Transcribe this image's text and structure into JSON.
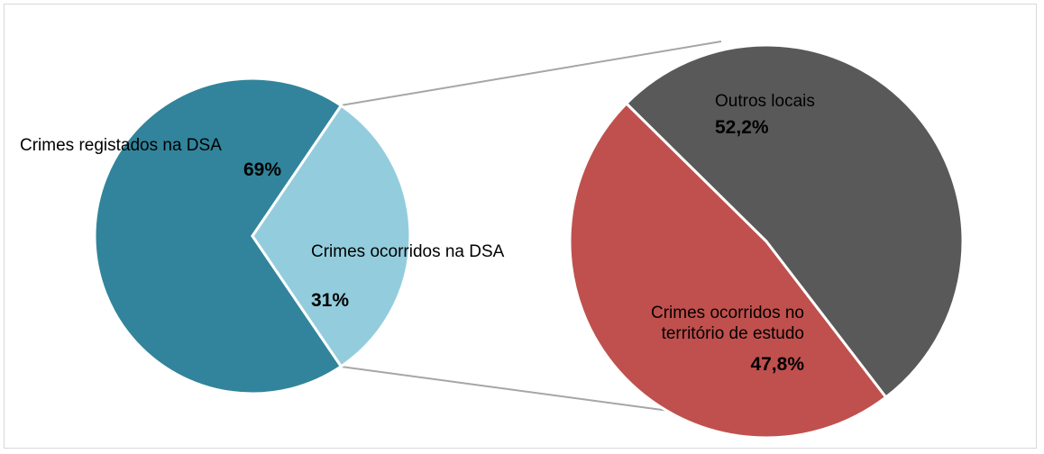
{
  "chart_data": [
    {
      "type": "pie",
      "categories": [
        "Crimes registados na DSA",
        "Crimes ocorridos na DSA"
      ],
      "values": [
        69,
        31
      ],
      "value_labels": [
        "69%",
        "31%"
      ],
      "colors": [
        "#31849b",
        "#93cddd"
      ]
    },
    {
      "type": "pie",
      "categories": [
        "Outros locais",
        "Crimes ocorridos no território de estudo"
      ],
      "values": [
        52.2,
        47.8
      ],
      "value_labels": [
        "52,2%",
        "47,8%"
      ],
      "colors": [
        "#595959",
        "#c0504d"
      ]
    }
  ]
}
